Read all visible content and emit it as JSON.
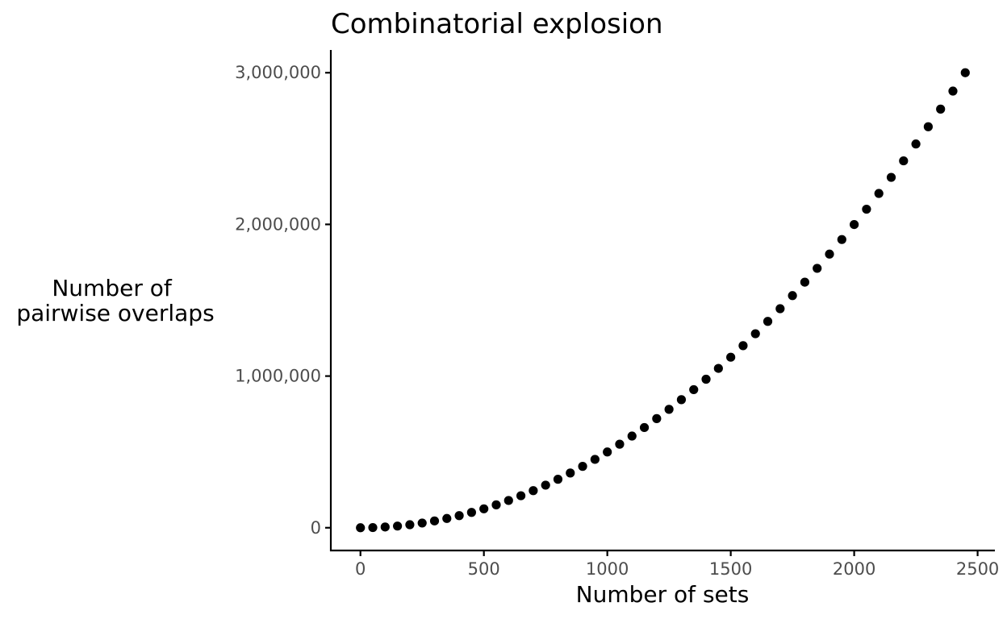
{
  "chart_data": {
    "type": "scatter",
    "title": "Combinatorial explosion",
    "xlabel": "Number of sets",
    "ylabel": [
      "Number of",
      "pairwise overlaps"
    ],
    "xlim": [
      -120,
      2570
    ],
    "ylim": [
      -150000,
      3150000
    ],
    "x_ticks": [
      0,
      500,
      1000,
      1500,
      2000,
      2500
    ],
    "x_tick_labels": [
      "0",
      "500",
      "1000",
      "1500",
      "2000",
      "2500"
    ],
    "y_ticks": [
      0,
      1000000,
      2000000,
      3000000
    ],
    "y_tick_labels": [
      "0",
      "1,000,000",
      "2,000,000",
      "3,000,000"
    ],
    "grid": false,
    "colors": {
      "points": "#000000",
      "axis": "#000000",
      "tick_text": "#4d4d4d"
    },
    "x": [
      0,
      50,
      100,
      150,
      200,
      250,
      300,
      350,
      400,
      450,
      500,
      550,
      600,
      650,
      700,
      750,
      800,
      850,
      900,
      950,
      1000,
      1050,
      1100,
      1150,
      1200,
      1250,
      1300,
      1350,
      1400,
      1450,
      1500,
      1550,
      1600,
      1650,
      1700,
      1750,
      1800,
      1850,
      1900,
      1950,
      2000,
      2050,
      2100,
      2150,
      2200,
      2250,
      2300,
      2350,
      2400,
      2450
    ],
    "y": [
      0,
      1225,
      4950,
      11175,
      19900,
      31125,
      44850,
      61075,
      79800,
      101025,
      124750,
      150975,
      179700,
      210925,
      244650,
      280875,
      319600,
      360825,
      404550,
      450775,
      499500,
      550725,
      604450,
      660675,
      719400,
      780625,
      844350,
      910575,
      979300,
      1050525,
      1124250,
      1200475,
      1279200,
      1360425,
      1444150,
      1530375,
      1619100,
      1710325,
      1804050,
      1900275,
      1999000,
      2100225,
      2203950,
      2310175,
      2418900,
      2530125,
      2643850,
      2760075,
      2878800,
      3000025
    ]
  }
}
